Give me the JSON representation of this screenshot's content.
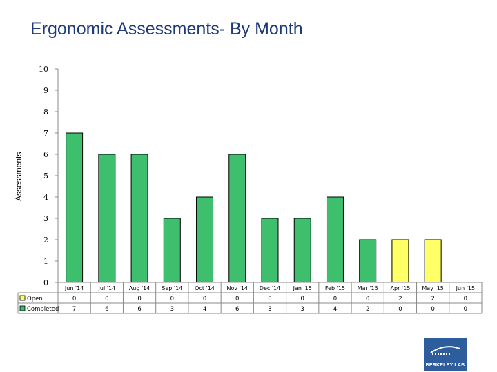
{
  "title": "Ergonomic Assessments- By Month",
  "logo_text": "BERKELEY LAB",
  "colors": {
    "completed": "#3dbf6e",
    "open": "#ffff66",
    "title": "#1f3a7a"
  },
  "chart_data": {
    "type": "bar",
    "stacked": true,
    "categories": [
      "Jun '14",
      "Jul '14",
      "Aug '14",
      "Sep '14",
      "Oct '14",
      "Nov '14",
      "Dec '14",
      "Jan '15",
      "Feb '15",
      "Mar '15",
      "Apr '15",
      "May '15",
      "Jun '15"
    ],
    "series": [
      {
        "name": "Open",
        "values": [
          0,
          0,
          0,
          0,
          0,
          0,
          0,
          0,
          0,
          0,
          2,
          2,
          0
        ]
      },
      {
        "name": "Completed",
        "values": [
          7,
          6,
          6,
          3,
          4,
          6,
          3,
          3,
          4,
          2,
          0,
          0,
          0
        ]
      }
    ],
    "ylabel": "Assessments",
    "xlabel": "",
    "ylim": [
      0,
      10
    ],
    "yticks": [
      0,
      1,
      2,
      3,
      4,
      5,
      6,
      7,
      8,
      9,
      10
    ],
    "grid": false,
    "legend": "data-table"
  }
}
